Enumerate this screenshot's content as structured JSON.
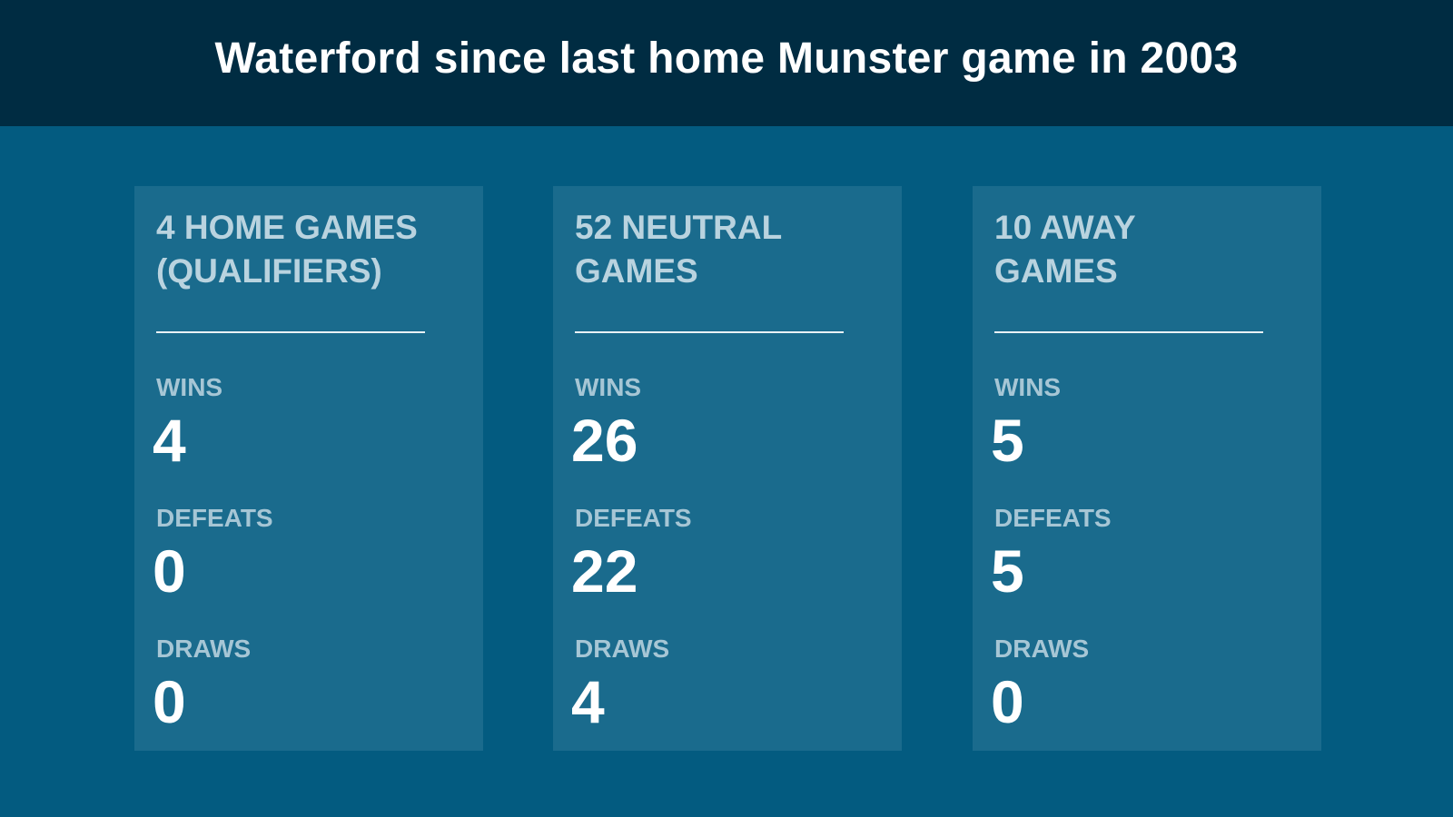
{
  "title": "Waterford since last home Munster game in 2003",
  "cards": [
    {
      "heading": "4 HOME GAMES\n(QUALIFIERS)",
      "wins_label": "WINS",
      "wins": "4",
      "defeats_label": "DEFEATS",
      "defeats": "0",
      "draws_label": "DRAWS",
      "draws": "0"
    },
    {
      "heading": "52 NEUTRAL\nGAMES",
      "wins_label": "WINS",
      "wins": "26",
      "defeats_label": "DEFEATS",
      "defeats": "22",
      "draws_label": "DRAWS",
      "draws": "4"
    },
    {
      "heading": "10 AWAY\nGAMES",
      "wins_label": "WINS",
      "wins": "5",
      "defeats_label": "DEFEATS",
      "defeats": "5",
      "draws_label": "DRAWS",
      "draws": "0"
    }
  ],
  "colors": {
    "background": "#035b80",
    "header": "#002c42",
    "card": "#1a6b8d",
    "heading_text": "#b9d3df",
    "label_text": "#a6c6d5",
    "value_text": "#ffffff"
  }
}
